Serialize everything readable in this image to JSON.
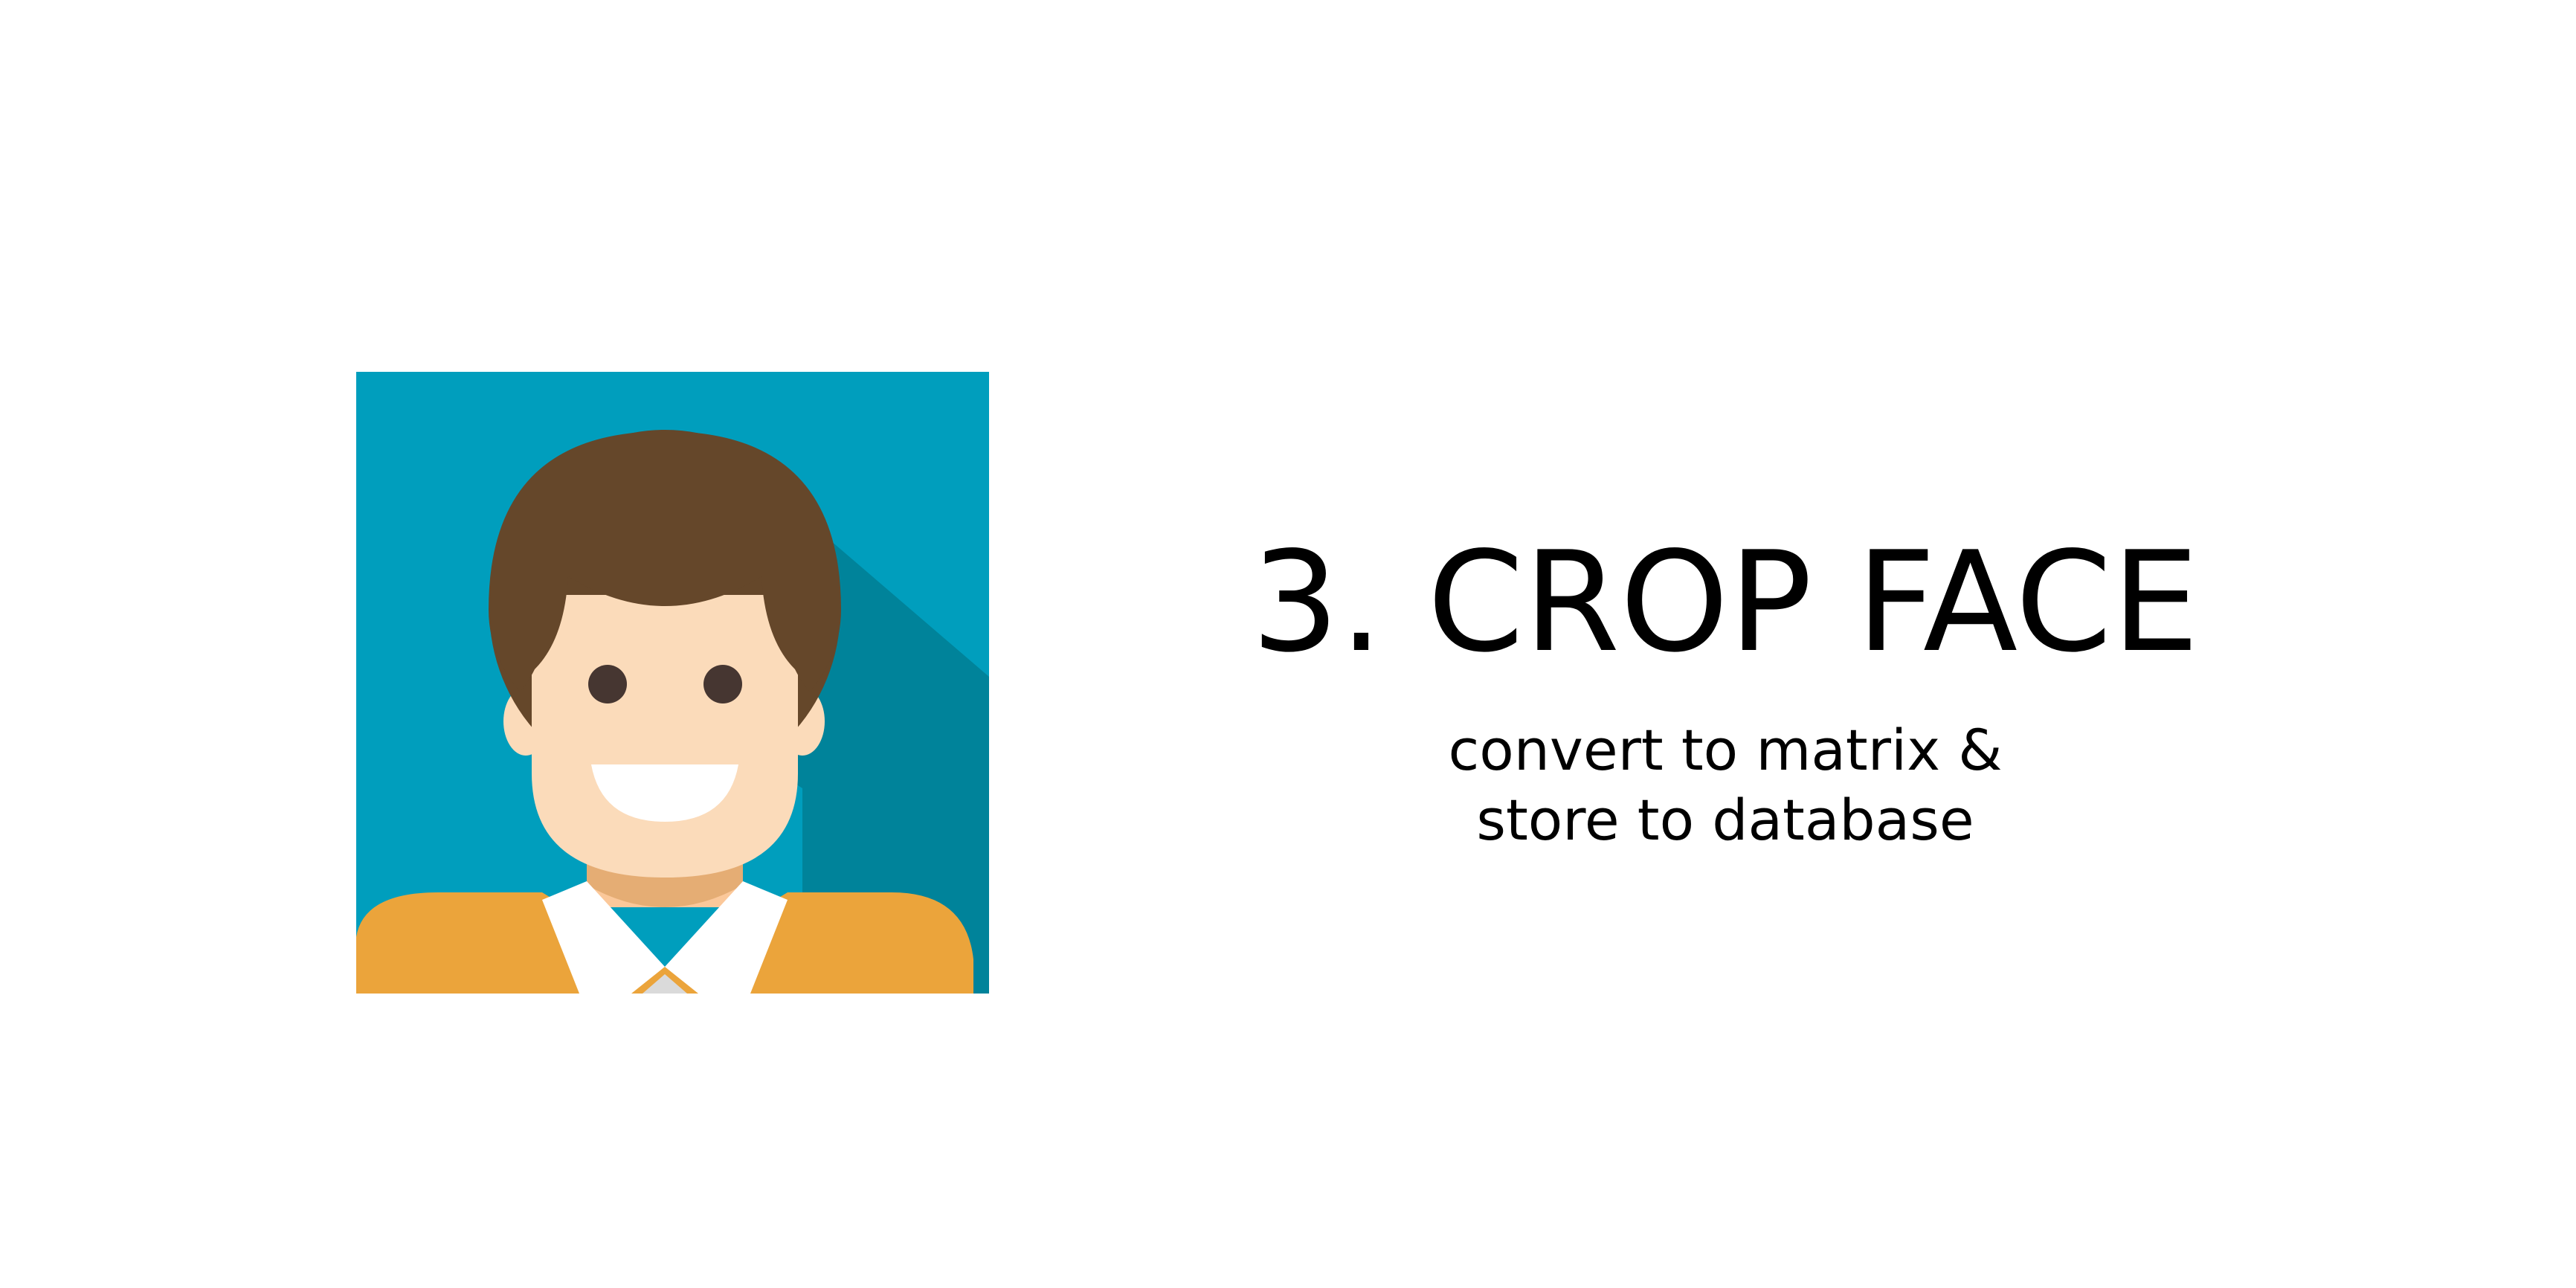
{
  "slide": {
    "title": "3. CROP FACE",
    "subtitle_line_1": "convert to matrix &",
    "subtitle_line_2": "store to database"
  },
  "illustration": {
    "icon": "person-avatar-icon",
    "colors": {
      "background": "#009EBD",
      "shadow": "#00839A",
      "hair": "#65472A",
      "skin": "#FBDBBA",
      "neck_shadow": "#E5AD74",
      "eyes": "#463631",
      "mouth": "#FFFFFF",
      "shirt": "#EBA43B",
      "collar": "#FFFFFF"
    }
  }
}
